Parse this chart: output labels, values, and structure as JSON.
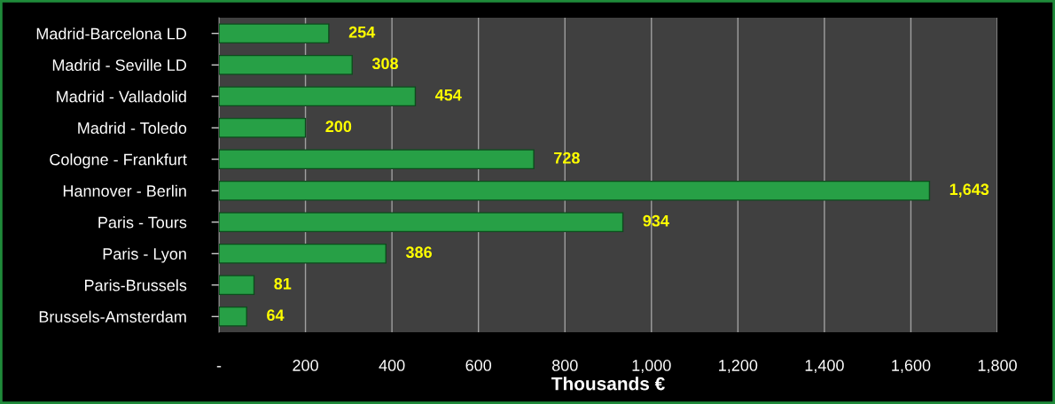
{
  "chart_data": {
    "type": "bar",
    "orientation": "horizontal",
    "xlabel": "Thousands €",
    "categories": [
      "Madrid-Barcelona LD",
      "Madrid - Seville LD",
      "Madrid - Valladolid",
      "Madrid - Toledo",
      "Cologne - Frankfurt",
      "Hannover - Berlin",
      "Paris - Tours",
      "Paris - Lyon",
      "Paris-Brussels",
      "Brussels-Amsterdam"
    ],
    "values": [
      254,
      308,
      454,
      200,
      728,
      1643,
      934,
      386,
      81,
      64
    ],
    "value_labels": [
      "254",
      "308",
      "454",
      "200",
      "728",
      "1,643",
      "934",
      "386",
      "81",
      "64"
    ],
    "color": "#27a046",
    "xlim": [
      0,
      1800
    ],
    "xticks": [
      {
        "value": 0,
        "label": "-"
      },
      200,
      400,
      600,
      800,
      {
        "value": 1000,
        "label": "1,000"
      },
      {
        "value": 1200,
        "label": "1,200"
      },
      {
        "value": 1400,
        "label": "1,400"
      },
      {
        "value": 1600,
        "label": "1,600"
      },
      {
        "value": 1800,
        "label": "1,800"
      }
    ],
    "grid": "x",
    "legend": false
  }
}
